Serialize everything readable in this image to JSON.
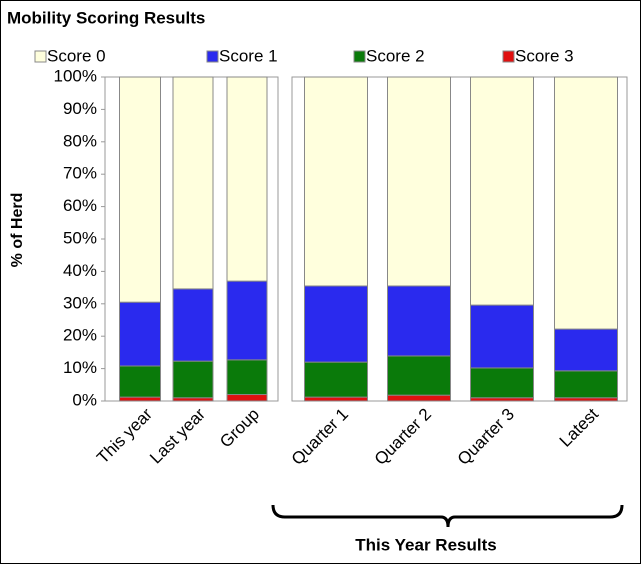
{
  "chart_data": {
    "type": "bar",
    "stacked": true,
    "title": "Mobility Scoring Results",
    "y_label": "% of Herd",
    "bracket_label": "This Year Results",
    "categories": [
      "This year",
      "Last year",
      "Group",
      "Quarter 1",
      "Quarter 2",
      "Quarter 3",
      "Latest"
    ],
    "series": [
      {
        "name": "Score 3",
        "color": "#e01010",
        "values": [
          1.2,
          1.0,
          2.0,
          1.2,
          1.8,
          1.0,
          1.0
        ]
      },
      {
        "name": "Score 2",
        "color": "#0a7a0a",
        "values": [
          9.6,
          11.3,
          10.7,
          10.8,
          12.1,
          9.2,
          8.3
        ]
      },
      {
        "name": "Score 1",
        "color": "#2a2aee",
        "values": [
          19.7,
          22.3,
          24.3,
          23.5,
          21.6,
          19.4,
          12.9
        ]
      },
      {
        "name": "Score 0",
        "color": "#ffffdd",
        "values": [
          69.5,
          65.4,
          63.0,
          64.5,
          64.5,
          70.4,
          77.8
        ]
      }
    ],
    "ylim": [
      0,
      100
    ],
    "yticks": [
      {
        "value": 0,
        "label": "0%"
      },
      {
        "value": 10,
        "label": "10%"
      },
      {
        "value": 20,
        "label": "20%"
      },
      {
        "value": 30,
        "label": "30%"
      },
      {
        "value": 40,
        "label": "40%"
      },
      {
        "value": 50,
        "label": "50%"
      },
      {
        "value": 60,
        "label": "60%"
      },
      {
        "value": 70,
        "label": "70%"
      },
      {
        "value": 80,
        "label": "80%"
      },
      {
        "value": 90,
        "label": "90%"
      },
      {
        "value": 100,
        "label": "100%"
      }
    ]
  }
}
